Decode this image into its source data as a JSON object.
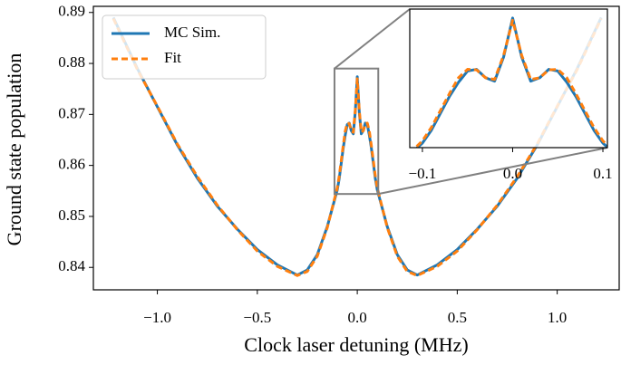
{
  "chart_data": {
    "type": "line",
    "xlabel": "Clock laser detuning (MHz)",
    "ylabel": "Ground state population",
    "x": [
      -1.22,
      -1.1,
      -1.0,
      -0.9,
      -0.8,
      -0.7,
      -0.6,
      -0.5,
      -0.4,
      -0.3,
      -0.25,
      -0.2,
      -0.15,
      -0.1,
      -0.09,
      -0.08,
      -0.07,
      -0.06,
      -0.05,
      -0.04,
      -0.03,
      -0.02,
      -0.01,
      0,
      0.01,
      0.02,
      0.03,
      0.04,
      0.05,
      0.06,
      0.07,
      0.08,
      0.09,
      0.1,
      0.15,
      0.2,
      0.25,
      0.3,
      0.4,
      0.5,
      0.6,
      0.7,
      0.8,
      0.9,
      1.0,
      1.1,
      1.22
    ],
    "series": [
      {
        "name": "MC Sim.",
        "color": "#1f77b4",
        "style": "solid",
        "values": [
          0.889,
          0.879,
          0.8715,
          0.864,
          0.8575,
          0.852,
          0.8475,
          0.8435,
          0.8405,
          0.8385,
          0.8395,
          0.8425,
          0.848,
          0.8552,
          0.8575,
          0.8605,
          0.8635,
          0.866,
          0.868,
          0.8683,
          0.8668,
          0.8662,
          0.8705,
          0.8774,
          0.8705,
          0.8662,
          0.8668,
          0.8683,
          0.868,
          0.866,
          0.8635,
          0.8605,
          0.8575,
          0.8552,
          0.848,
          0.8425,
          0.8395,
          0.8385,
          0.8405,
          0.8435,
          0.8475,
          0.852,
          0.8575,
          0.864,
          0.8715,
          0.879,
          0.889
        ]
      },
      {
        "name": "Fit",
        "color": "#ff7f0e",
        "style": "dashed",
        "values": [
          0.8888,
          0.8788,
          0.8716,
          0.8642,
          0.8578,
          0.8522,
          0.8474,
          0.8432,
          0.8402,
          0.8384,
          0.8392,
          0.8422,
          0.8478,
          0.8556,
          0.858,
          0.861,
          0.864,
          0.8668,
          0.8683,
          0.8682,
          0.8668,
          0.8665,
          0.8708,
          0.877,
          0.8708,
          0.8665,
          0.8668,
          0.8682,
          0.8683,
          0.8668,
          0.864,
          0.861,
          0.858,
          0.8556,
          0.8478,
          0.8422,
          0.8392,
          0.8384,
          0.8402,
          0.8432,
          0.8474,
          0.8522,
          0.8578,
          0.8642,
          0.8716,
          0.8788,
          0.8888
        ]
      }
    ],
    "xlim": [
      -1.32,
      1.31
    ],
    "ylim": [
      0.8356,
      0.8912
    ],
    "xticks": [
      {
        "value": -1.0,
        "label": "−1.0"
      },
      {
        "value": -0.5,
        "label": "−0.5"
      },
      {
        "value": 0.0,
        "label": "0.0"
      },
      {
        "value": 0.5,
        "label": "0.5"
      },
      {
        "value": 1.0,
        "label": "1.0"
      }
    ],
    "yticks": [
      0.84,
      0.85,
      0.86,
      0.87,
      0.88,
      0.89
    ],
    "legend": "upper left",
    "inset": {
      "xlim": [
        -0.114,
        0.105
      ],
      "ylim": [
        0.8544,
        0.879
      ],
      "xticks": [
        {
          "value": -0.1,
          "label": "−0.1"
        },
        {
          "value": 0.0,
          "label": "0.0"
        },
        {
          "value": 0.1,
          "label": "0.1"
        }
      ]
    }
  }
}
